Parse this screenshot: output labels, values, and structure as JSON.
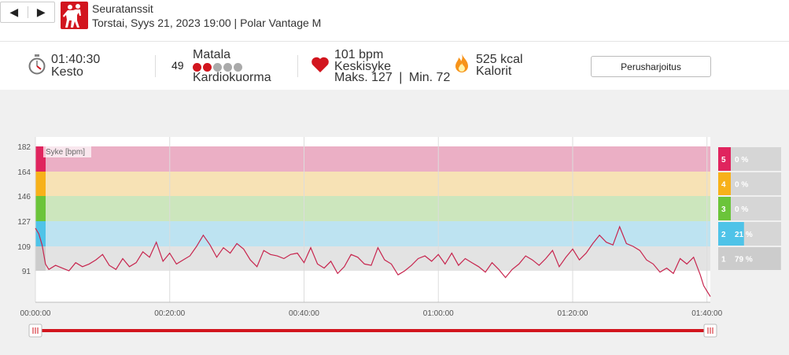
{
  "nav": {
    "prev": "◀",
    "next": "▶"
  },
  "session": {
    "sport": "Seuratanssit",
    "subtitle": "Torstai, Syys 21, 2023 19:00 | Polar Vantage M"
  },
  "summary": {
    "duration": {
      "value": "01:40:30",
      "label": "Kesto"
    },
    "load": {
      "value": "49",
      "level": "Matala",
      "label": "Kardiokuorma",
      "dots_total": 5,
      "dots_filled": 2
    },
    "heart_rate": {
      "value": "101 bpm",
      "label": "Keskisyke",
      "max": "Maks. 127",
      "sep": "|",
      "min": "Min. 72"
    },
    "calories": {
      "value": "525 kcal",
      "label": "Kalorit"
    },
    "button": "Perusharjoitus"
  },
  "colors": {
    "accent": "#d2151e",
    "zone5": "#e0245e",
    "zone4": "#f7b11a",
    "zone3": "#6bc43a",
    "zone2": "#4fc3e8",
    "zone1": "#cccccc",
    "line": "#c7254e"
  },
  "chart_data": {
    "type": "line",
    "title": "Syke [bpm]",
    "ylabel": "Syke [bpm]",
    "y_ticks": [
      182,
      164,
      146,
      127,
      109,
      91
    ],
    "x_ticks": [
      "00:00:00",
      "00:20:00",
      "00:40:00",
      "01:00:00",
      "01:20:00",
      "01:40:00"
    ],
    "xlim_min": [
      0,
      100.5
    ],
    "ylim": [
      68,
      182
    ],
    "zones": [
      {
        "zone": "5",
        "from": 164,
        "to": 182,
        "percent": "0 %"
      },
      {
        "zone": "4",
        "from": 146,
        "to": 164,
        "percent": "0 %"
      },
      {
        "zone": "3",
        "from": 127,
        "to": 146,
        "percent": "0 %"
      },
      {
        "zone": "2",
        "from": 109,
        "to": 127,
        "percent": "21 %"
      },
      {
        "zone": "1",
        "from": 91,
        "to": 109,
        "percent": "79 %"
      }
    ],
    "series": [
      {
        "x": [
          0,
          0.5,
          1,
          1.5,
          2,
          3,
          4,
          5,
          6,
          7,
          8,
          9,
          10,
          11,
          12,
          13,
          14,
          15,
          16,
          17,
          18,
          19,
          20,
          21,
          22,
          23,
          24,
          25,
          26,
          27,
          28,
          29,
          30,
          31,
          32,
          33,
          34,
          35,
          36,
          37,
          38,
          39,
          40,
          41,
          42,
          43,
          44,
          45,
          46,
          47,
          48,
          49,
          50,
          51,
          52,
          53,
          54,
          55,
          56,
          57,
          58,
          59,
          60,
          61,
          62,
          63,
          64,
          65,
          66,
          67,
          68,
          69,
          70,
          71,
          72,
          73,
          74,
          75,
          76,
          77,
          78,
          79,
          80,
          81,
          82,
          83,
          84,
          85,
          86,
          87,
          88,
          89,
          90,
          91,
          92,
          93,
          94,
          95,
          96,
          97,
          98,
          99,
          99.5,
          100,
          100.5
        ],
        "y": [
          122,
          118,
          110,
          96,
          92,
          95,
          93,
          91,
          97,
          94,
          96,
          99,
          103,
          95,
          92,
          100,
          94,
          97,
          105,
          101,
          112,
          98,
          104,
          96,
          99,
          102,
          109,
          117,
          110,
          101,
          108,
          104,
          111,
          107,
          99,
          94,
          106,
          103,
          102,
          100,
          103,
          104,
          97,
          108,
          96,
          93,
          98,
          89,
          94,
          103,
          101,
          96,
          95,
          108,
          99,
          96,
          88,
          91,
          95,
          100,
          102,
          98,
          103,
          96,
          104,
          95,
          100,
          97,
          94,
          90,
          97,
          92,
          86,
          92,
          96,
          102,
          99,
          95,
          100,
          106,
          94,
          101,
          107,
          99,
          104,
          111,
          117,
          112,
          110,
          123,
          111,
          109,
          106,
          99,
          96,
          90,
          93,
          89,
          100,
          96,
          101,
          88,
          80,
          76,
          72
        ]
      }
    ]
  }
}
